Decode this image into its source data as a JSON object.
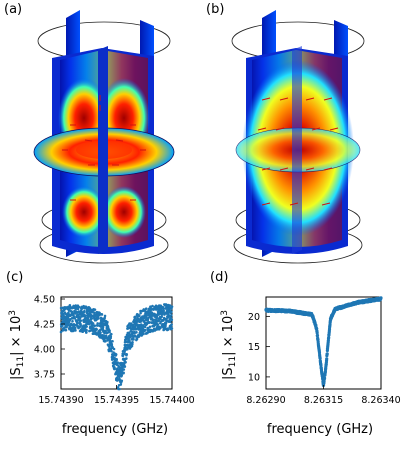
{
  "figure": {
    "panel_labels": [
      "(a)",
      "(b)",
      "(c)",
      "(d)"
    ]
  },
  "colors": {
    "field_map": [
      "#00008f",
      "#0038ff",
      "#00c8ff",
      "#7dff7a",
      "#ffe600",
      "#ff4000",
      "#a00000"
    ],
    "arrow_color": "#d01010",
    "data_color": "#1f77b4"
  },
  "chart_data": [
    {
      "panel": "(c)",
      "type": "scatter",
      "xlabel": "frequency (GHz)",
      "ylabel": "|S11| × 10^3",
      "ylabel_parts": {
        "base": "|S",
        "sub": "11",
        "mid": "| × 10",
        "sup": "3"
      },
      "xlim": [
        15.7439,
        15.744
      ],
      "ylim": [
        3.6,
        4.52
      ],
      "xticks": [
        15.7439,
        15.74395,
        15.744
      ],
      "xtick_labels": [
        "15.74390",
        "15.74395",
        "15.74400"
      ],
      "yticks": [
        3.75,
        4.0,
        4.25,
        4.5
      ],
      "ytick_labels": [
        "3.75",
        "4.00",
        "4.25",
        "4.50"
      ],
      "resonance_center": 15.743952,
      "baseline": 4.31,
      "dip_minimum": 3.7,
      "noise_band": 0.13,
      "series": [
        {
          "x": [
            15.7439,
            15.74391,
            15.74392,
            15.74393,
            15.74394,
            15.743945,
            15.74395,
            15.743952,
            15.743955,
            15.74396,
            15.74397,
            15.74398,
            15.74399,
            15.744
          ],
          "values": [
            4.3,
            4.31,
            4.3,
            4.28,
            4.2,
            4.05,
            3.8,
            3.7,
            3.8,
            4.1,
            4.25,
            4.3,
            4.32,
            4.32
          ]
        }
      ],
      "grid": false
    },
    {
      "panel": "(d)",
      "type": "scatter",
      "xlabel": "frequency (GHz)",
      "ylabel": "|S11| × 10^3",
      "ylabel_parts": {
        "base": "|S",
        "sub": "11",
        "mid": "| × 10",
        "sup": "3"
      },
      "xlim": [
        8.2629,
        8.2634
      ],
      "ylim": [
        8,
        23.2
      ],
      "xticks": [
        8.2629,
        8.26315,
        8.2634
      ],
      "xtick_labels": [
        "8.26290",
        "8.26315",
        "8.26340"
      ],
      "yticks": [
        10,
        15,
        20
      ],
      "ytick_labels": [
        "10",
        "15",
        "20"
      ],
      "resonance_center": 8.26315,
      "series": [
        {
          "x": [
            8.2629,
            8.263,
            8.2631,
            8.26312,
            8.26314,
            8.26315,
            8.26316,
            8.26318,
            8.2632,
            8.2633,
            8.2634
          ],
          "values": [
            21.0,
            20.9,
            20.3,
            18.0,
            11.5,
            8.6,
            11.5,
            19.5,
            21.2,
            22.3,
            22.9
          ]
        }
      ],
      "grid": false
    }
  ]
}
